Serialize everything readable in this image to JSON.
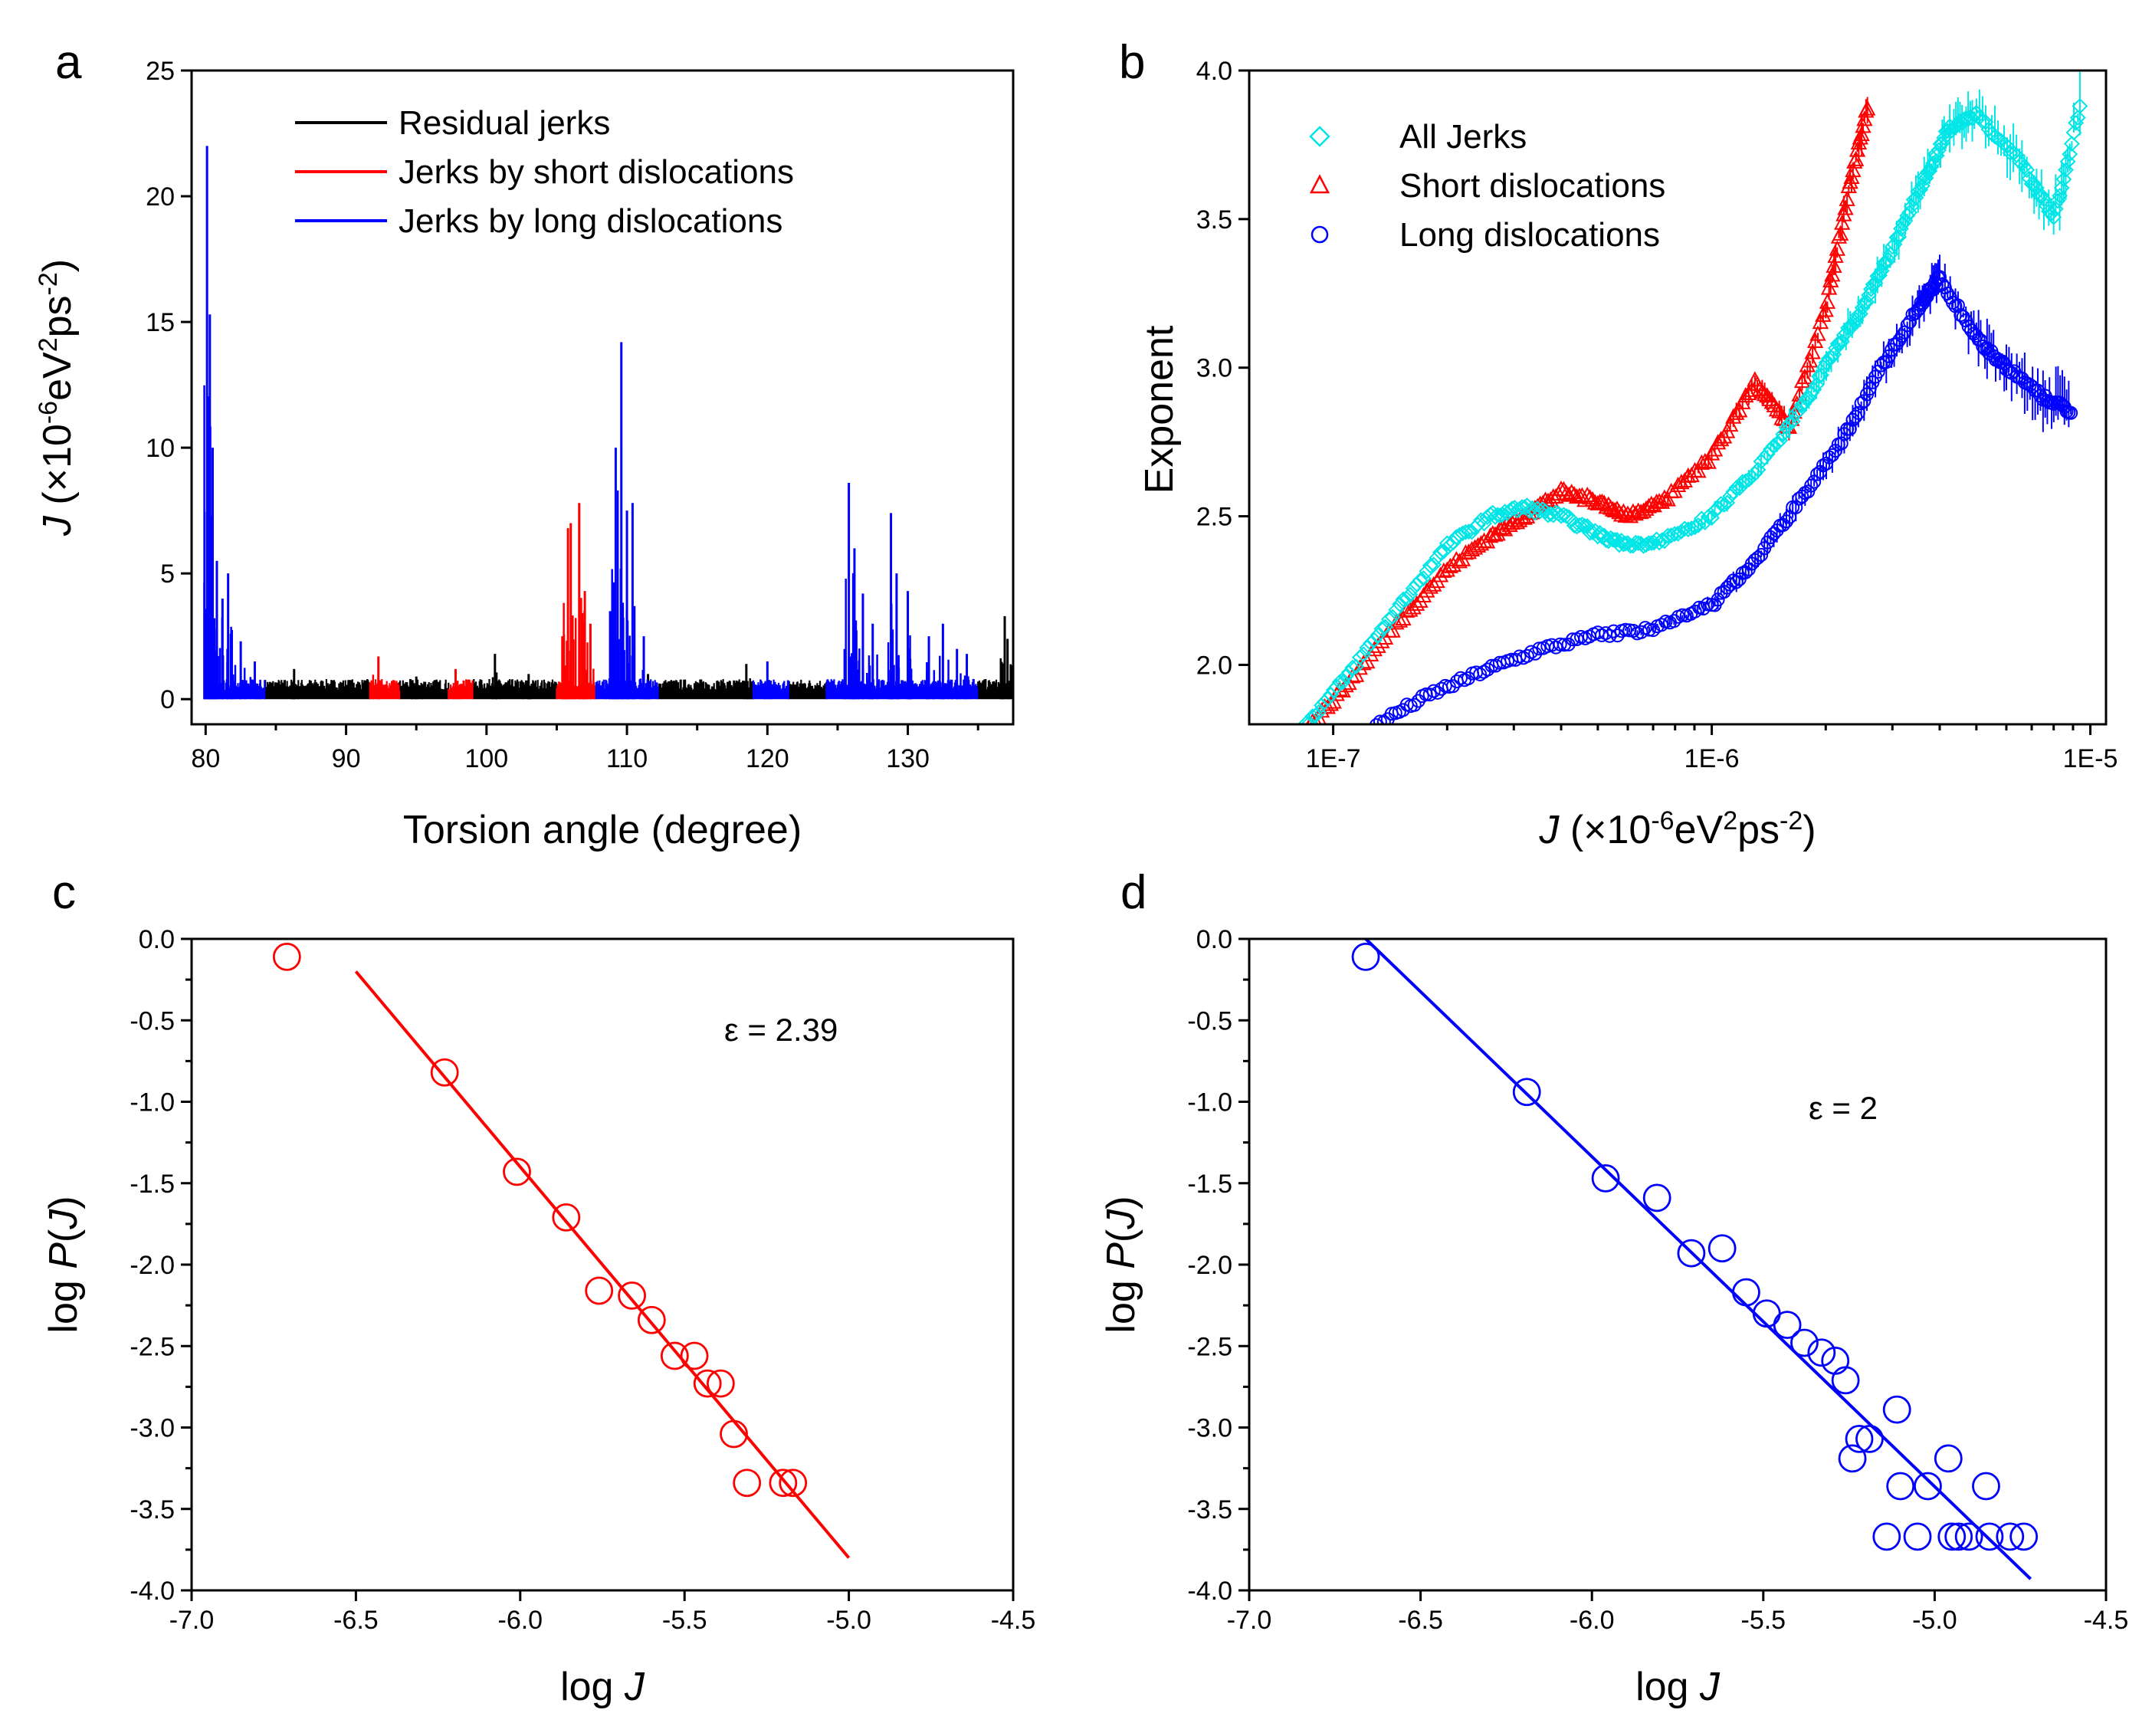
{
  "chart_data": [
    {
      "panel": "a",
      "type": "line",
      "xlabel": "Torsion angle (degree)",
      "ylabel": "J (×10-6eV2ps-2)",
      "ylabel_parts": {
        "italic": "J",
        "base": " (×10",
        "sup1": "-6",
        "mid": "eV",
        "sup2": "2",
        "mid2": "ps",
        "sup3": "-2",
        "end": ")"
      },
      "xlim": [
        79,
        137.5
      ],
      "ylim": [
        -1,
        25
      ],
      "xticks": [
        80,
        90,
        100,
        110,
        120,
        130
      ],
      "yticks": [
        0,
        5,
        10,
        15,
        20,
        25
      ],
      "legend": [
        "Residual jerks",
        "Jerks by short dislocations",
        "Jerks by long dislocations"
      ],
      "legend_position": "top-center",
      "colors": {
        "residual": "#000000",
        "short": "#ff0000",
        "long": "#0000ff"
      },
      "series": [
        {
          "name": "Residual jerks",
          "color": "#000000",
          "segments": [
            [
              84.2,
              91.7
            ],
            [
              93.8,
              97.3
            ],
            [
              99.0,
              105.0
            ],
            [
              112.2,
              119.0
            ],
            [
              121.5,
              124.2
            ],
            [
              135.0,
              137.3
            ]
          ],
          "peaks": [
            [
              100.6,
              1.8
            ],
            [
              86.3,
              1.2
            ],
            [
              111.5,
              1.0
            ],
            [
              118.5,
              1.4
            ],
            [
              136.9,
              3.3
            ],
            [
              137.1,
              2.4
            ],
            [
              103.0,
              1.0
            ],
            [
              95.0,
              0.9
            ]
          ]
        },
        {
          "name": "Jerks by short dislocations",
          "color": "#ff0000",
          "segments": [
            [
              91.7,
              93.8
            ],
            [
              97.3,
              99.0
            ],
            [
              105.0,
              107.8
            ]
          ],
          "peaks": [
            [
              92.3,
              1.7
            ],
            [
              97.8,
              1.2
            ],
            [
              105.8,
              6.8
            ],
            [
              106.0,
              7.0
            ],
            [
              106.6,
              7.8
            ],
            [
              107.0,
              4.3
            ],
            [
              107.4,
              3.0
            ],
            [
              105.4,
              2.5
            ]
          ]
        },
        {
          "name": "Jerks by long dislocations",
          "color": "#0000ff",
          "segments": [
            [
              80.0,
              84.2
            ],
            [
              107.8,
              112.2
            ],
            [
              119.0,
              121.5
            ],
            [
              124.2,
              135.0
            ]
          ],
          "peaks": [
            [
              80.1,
              22.0
            ],
            [
              80.3,
              15.3
            ],
            [
              80.5,
              10.0
            ],
            [
              80.8,
              5.5
            ],
            [
              81.2,
              4.0
            ],
            [
              81.6,
              5.0
            ],
            [
              82.5,
              2.3
            ],
            [
              83.5,
              1.5
            ],
            [
              109.6,
              14.2
            ],
            [
              109.2,
              10.0
            ],
            [
              110.4,
              7.8
            ],
            [
              110.0,
              7.5
            ],
            [
              108.8,
              3.5
            ],
            [
              111.2,
              2.5
            ],
            [
              120.0,
              1.5
            ],
            [
              125.8,
              8.6
            ],
            [
              126.2,
              6.0
            ],
            [
              126.8,
              4.2
            ],
            [
              127.5,
              3.0
            ],
            [
              128.8,
              7.4
            ],
            [
              129.2,
              5.0
            ],
            [
              130.0,
              4.3
            ],
            [
              131.5,
              2.5
            ],
            [
              132.5,
              3.0
            ],
            [
              133.5,
              2.0
            ],
            [
              134.2,
              1.8
            ]
          ]
        }
      ]
    },
    {
      "panel": "b",
      "type": "scatter",
      "xlabel": "J (×10-6eV2ps-2)",
      "ylabel": "Exponent",
      "xscale": "log",
      "xlim": [
        6e-08,
        1.1e-05
      ],
      "ylim": [
        1.8,
        4.0
      ],
      "xticks": [
        1e-07,
        1e-06,
        1e-05
      ],
      "xtick_labels": [
        "1E-7",
        "1E-6",
        "1E-5"
      ],
      "yticks": [
        2.0,
        2.5,
        3.0,
        3.5,
        4.0
      ],
      "ytick_labels": [
        "2.0",
        "2.5",
        "3.0",
        "3.5",
        "4.0"
      ],
      "legend": [
        "All Jerks",
        "Short dislocations",
        "Long dislocations"
      ],
      "legend_position": "top-left",
      "series": [
        {
          "name": "All Jerks",
          "color": "#00e5e5",
          "marker": "diamond",
          "points": [
            [
              8.5e-08,
              1.8
            ],
            [
              1.1e-07,
              1.97
            ],
            [
              1.5e-07,
              2.2
            ],
            [
              2e-07,
              2.4
            ],
            [
              2.6e-07,
              2.5
            ],
            [
              3.2e-07,
              2.53
            ],
            [
              4e-07,
              2.5
            ],
            [
              5e-07,
              2.44
            ],
            [
              6e-07,
              2.4
            ],
            [
              7.5e-07,
              2.42
            ],
            [
              1e-06,
              2.5
            ],
            [
              1.3e-06,
              2.65
            ],
            [
              1.7e-06,
              2.85
            ],
            [
              2.1e-06,
              3.05
            ],
            [
              2.5e-06,
              3.2
            ],
            [
              3e-06,
              3.4
            ],
            [
              3.6e-06,
              3.62
            ],
            [
              4.2e-06,
              3.8
            ],
            [
              5e-06,
              3.85
            ],
            [
              6.5e-06,
              3.7
            ],
            [
              8e-06,
              3.5
            ],
            [
              9.5e-06,
              3.9
            ]
          ]
        },
        {
          "name": "Short dislocations",
          "color": "#ff0000",
          "marker": "triangle",
          "points": [
            [
              8.5e-08,
              1.78
            ],
            [
              1.1e-07,
              1.94
            ],
            [
              1.5e-07,
              2.15
            ],
            [
              2e-07,
              2.32
            ],
            [
              2.6e-07,
              2.43
            ],
            [
              3.2e-07,
              2.5
            ],
            [
              4e-07,
              2.58
            ],
            [
              5e-07,
              2.55
            ],
            [
              6e-07,
              2.5
            ],
            [
              7.5e-07,
              2.55
            ],
            [
              1e-06,
              2.7
            ],
            [
              1.3e-06,
              2.95
            ],
            [
              1.6e-06,
              2.8
            ],
            [
              2e-06,
              3.2
            ],
            [
              2.3e-06,
              3.6
            ],
            [
              2.6e-06,
              3.9
            ]
          ]
        },
        {
          "name": "Long dislocations",
          "color": "#0000ff",
          "marker": "circle",
          "points": [
            [
              1.3e-07,
              1.8
            ],
            [
              1.8e-07,
              1.9
            ],
            [
              2.5e-07,
              1.98
            ],
            [
              3.5e-07,
              2.05
            ],
            [
              5e-07,
              2.1
            ],
            [
              7e-07,
              2.12
            ],
            [
              1e-06,
              2.2
            ],
            [
              1.3e-06,
              2.35
            ],
            [
              1.7e-06,
              2.55
            ],
            [
              2.2e-06,
              2.75
            ],
            [
              2.8e-06,
              3.0
            ],
            [
              3.5e-06,
              3.2
            ],
            [
              4e-06,
              3.3
            ],
            [
              5e-06,
              3.1
            ],
            [
              6e-06,
              3.0
            ],
            [
              7.5e-06,
              2.9
            ],
            [
              9e-06,
              2.85
            ]
          ]
        }
      ]
    },
    {
      "panel": "c",
      "type": "scatter",
      "xlabel": "log J",
      "ylabel": "log P(J)",
      "xlim": [
        -7.0,
        -4.5
      ],
      "ylim": [
        -4.0,
        0.0
      ],
      "xticks": [
        -7.0,
        -6.5,
        -6.0,
        -5.5,
        -5.0,
        -4.5
      ],
      "xtick_labels": [
        "-7.0",
        "-6.5",
        "-6.0",
        "-5.5",
        "-5.0",
        "-4.5"
      ],
      "yticks": [
        0.0,
        -0.5,
        -1.0,
        -1.5,
        -2.0,
        -2.5,
        -3.0,
        -3.5,
        -4.0
      ],
      "ytick_labels": [
        "0.0",
        "-0.5",
        "-1.0",
        "-1.5",
        "-2.0",
        "-2.5",
        "-3.0",
        "-3.5",
        "-4.0"
      ],
      "color": "#ff0000",
      "annotation": "ε = 2.39",
      "points": [
        [
          -6.71,
          -0.11
        ],
        [
          -6.23,
          -0.82
        ],
        [
          -6.01,
          -1.43
        ],
        [
          -5.86,
          -1.71
        ],
        [
          -5.76,
          -2.16
        ],
        [
          -5.66,
          -2.19
        ],
        [
          -5.6,
          -2.34
        ],
        [
          -5.53,
          -2.56
        ],
        [
          -5.47,
          -2.56
        ],
        [
          -5.43,
          -2.73
        ],
        [
          -5.39,
          -2.73
        ],
        [
          -5.35,
          -3.04
        ],
        [
          -5.31,
          -3.34
        ],
        [
          -5.2,
          -3.34
        ],
        [
          -5.17,
          -3.34
        ]
      ],
      "fit_line": [
        [
          -6.5,
          -0.2
        ],
        [
          -5.0,
          -3.8
        ]
      ]
    },
    {
      "panel": "d",
      "type": "scatter",
      "xlabel": "log J",
      "ylabel": "log P(J)",
      "xlim": [
        -7.0,
        -4.5
      ],
      "ylim": [
        -4.0,
        0.0
      ],
      "xticks": [
        -7.0,
        -6.5,
        -6.0,
        -5.5,
        -5.0,
        -4.5
      ],
      "xtick_labels": [
        "-7.0",
        "-6.5",
        "-6.0",
        "-5.5",
        "-5.0",
        "-4.5"
      ],
      "yticks": [
        0.0,
        -0.5,
        -1.0,
        -1.5,
        -2.0,
        -2.5,
        -3.0,
        -3.5,
        -4.0
      ],
      "ytick_labels": [
        "0.0",
        "-0.5",
        "-1.0",
        "-1.5",
        "-2.0",
        "-2.5",
        "-3.0",
        "-3.5",
        "-4.0"
      ],
      "color": "#0000ff",
      "annotation": "ε = 2",
      "points": [
        [
          -6.66,
          -0.11
        ],
        [
          -6.19,
          -0.94
        ],
        [
          -5.96,
          -1.47
        ],
        [
          -5.81,
          -1.59
        ],
        [
          -5.71,
          -1.93
        ],
        [
          -5.62,
          -1.9
        ],
        [
          -5.55,
          -2.17
        ],
        [
          -5.49,
          -2.3
        ],
        [
          -5.43,
          -2.37
        ],
        [
          -5.38,
          -2.48
        ],
        [
          -5.33,
          -2.54
        ],
        [
          -5.29,
          -2.59
        ],
        [
          -5.26,
          -2.71
        ],
        [
          -5.24,
          -3.19
        ],
        [
          -5.22,
          -3.07
        ],
        [
          -5.19,
          -3.07
        ],
        [
          -5.14,
          -3.67
        ],
        [
          -5.11,
          -2.89
        ],
        [
          -5.1,
          -3.36
        ],
        [
          -5.05,
          -3.67
        ],
        [
          -5.02,
          -3.36
        ],
        [
          -4.96,
          -3.19
        ],
        [
          -4.95,
          -3.67
        ],
        [
          -4.93,
          -3.67
        ],
        [
          -4.9,
          -3.67
        ],
        [
          -4.85,
          -3.36
        ],
        [
          -4.84,
          -3.67
        ],
        [
          -4.78,
          -3.67
        ],
        [
          -4.74,
          -3.67
        ]
      ],
      "fit_line": [
        [
          -6.66,
          0.0
        ],
        [
          -4.72,
          -3.93
        ]
      ]
    }
  ]
}
